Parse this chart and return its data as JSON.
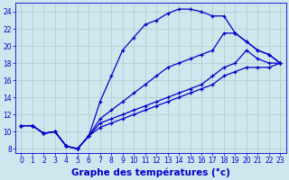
{
  "bg_color": "#cce8ee",
  "line_color": "#0000cc",
  "grid_color": "#aacccc",
  "xlim": [
    -0.5,
    23.5
  ],
  "ylim": [
    7.5,
    25.0
  ],
  "xticks": [
    0,
    1,
    2,
    3,
    4,
    5,
    6,
    7,
    8,
    9,
    10,
    11,
    12,
    13,
    14,
    15,
    16,
    17,
    18,
    19,
    20,
    21,
    22,
    23
  ],
  "yticks": [
    8,
    10,
    12,
    14,
    16,
    18,
    20,
    22,
    24
  ],
  "lines": [
    {
      "x": [
        0,
        1,
        2,
        3,
        4,
        5,
        6,
        7,
        8,
        9,
        10,
        11,
        12,
        13,
        14,
        15,
        16,
        17,
        18,
        19,
        20,
        21,
        22,
        23
      ],
      "y": [
        10.7,
        10.7,
        9.8,
        10.0,
        8.3,
        8.0,
        9.5,
        13.5,
        16.5,
        19.5,
        21.0,
        22.5,
        23.0,
        23.8,
        24.3,
        24.3,
        24.0,
        23.5,
        23.5,
        21.5,
        20.5,
        19.5,
        19.0,
        18.0
      ]
    },
    {
      "x": [
        0,
        1,
        2,
        3,
        4,
        5,
        6,
        7,
        8,
        9,
        10,
        11,
        12,
        13,
        14,
        15,
        16,
        17,
        18,
        19,
        20,
        21,
        22,
        23
      ],
      "y": [
        10.7,
        10.7,
        9.8,
        10.0,
        8.3,
        8.0,
        9.5,
        11.5,
        12.5,
        13.5,
        14.5,
        15.5,
        16.5,
        17.5,
        18.0,
        18.5,
        19.0,
        19.5,
        21.5,
        21.5,
        20.5,
        19.5,
        19.0,
        18.0
      ]
    },
    {
      "x": [
        0,
        1,
        2,
        3,
        4,
        5,
        6,
        7,
        8,
        9,
        10,
        11,
        12,
        13,
        14,
        15,
        16,
        17,
        18,
        19,
        20,
        21,
        22,
        23
      ],
      "y": [
        10.7,
        10.7,
        9.8,
        10.0,
        8.3,
        8.0,
        9.5,
        11.0,
        11.5,
        12.0,
        12.5,
        13.0,
        13.5,
        14.0,
        14.5,
        15.0,
        15.5,
        16.5,
        17.5,
        18.0,
        19.5,
        18.5,
        18.0,
        18.0
      ]
    },
    {
      "x": [
        0,
        1,
        2,
        3,
        4,
        5,
        6,
        7,
        8,
        9,
        10,
        11,
        12,
        13,
        14,
        15,
        16,
        17,
        18,
        19,
        20,
        21,
        22,
        23
      ],
      "y": [
        10.7,
        10.7,
        9.8,
        10.0,
        8.3,
        8.0,
        9.5,
        10.5,
        11.0,
        11.5,
        12.0,
        12.5,
        13.0,
        13.5,
        14.0,
        14.5,
        15.0,
        15.5,
        16.5,
        17.0,
        17.5,
        17.5,
        17.5,
        18.0
      ]
    }
  ],
  "xlabel": "Graphe des températures (°c)",
  "xlabel_fontsize": 7.5,
  "tick_fontsize": 5.5,
  "tick_color": "#0000cc"
}
